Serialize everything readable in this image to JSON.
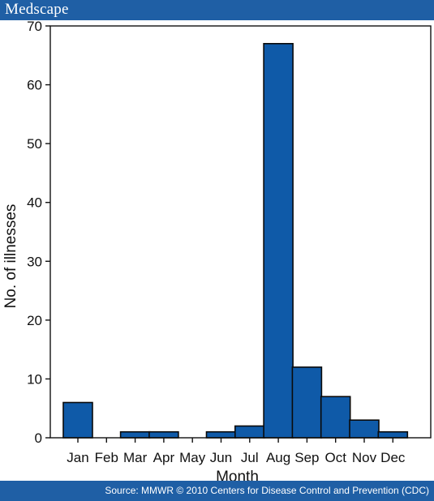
{
  "header": {
    "brand": "Medscape"
  },
  "footer": {
    "source": "Source: MMWR © 2010 Centers for Disease Control and Prevention (CDC)"
  },
  "colors": {
    "bar": "#0f5aa8",
    "bar_stroke": "#0a0a0a",
    "band": "#1f5fa5"
  },
  "chart_data": {
    "type": "bar",
    "categories": [
      "Jan",
      "Feb",
      "Mar",
      "Apr",
      "May",
      "Jun",
      "Jul",
      "Aug",
      "Sep",
      "Oct",
      "Nov",
      "Dec"
    ],
    "values": [
      6,
      0,
      1,
      1,
      0,
      1,
      2,
      67,
      12,
      7,
      3,
      1
    ],
    "xlabel": "Month",
    "ylabel": "No. of illnesses",
    "ylim": [
      0,
      70
    ],
    "yticks": [
      0,
      10,
      20,
      30,
      40,
      50,
      60,
      70
    ],
    "grid": false
  }
}
